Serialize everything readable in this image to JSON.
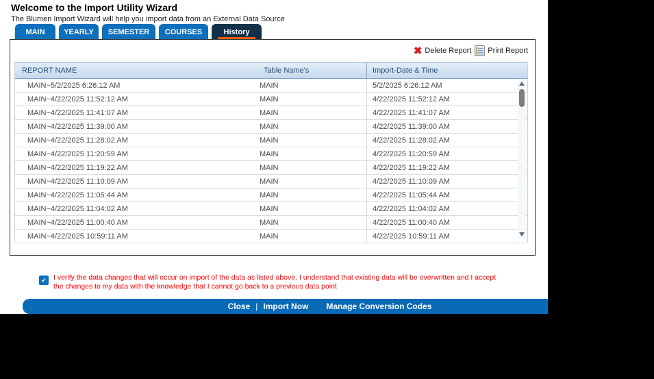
{
  "page": {
    "title": "Welcome to the Import Utility Wizard",
    "subtitle": "The Blumen Import Wizard will help you import data from an External Data Source"
  },
  "tabs": [
    {
      "label": "MAIN",
      "active": false
    },
    {
      "label": "YEARLY",
      "active": false
    },
    {
      "label": "SEMESTER",
      "active": false
    },
    {
      "label": "COURSES",
      "active": false
    },
    {
      "label": "History",
      "active": true
    }
  ],
  "toolbar": {
    "delete_label": "Delete Report",
    "print_label": "Print Report",
    "delete_icon": "red-x",
    "print_icon": "printer-document"
  },
  "table": {
    "columns": [
      "REPORT NAME",
      "Table Name's",
      "Import-Date & Time"
    ],
    "rows": [
      [
        "MAIN~5/2/2025 6:26:12 AM",
        "MAIN",
        "5/2/2025 6:26:12 AM"
      ],
      [
        "MAIN~4/22/2025 11:52:12 AM",
        "MAIN",
        "4/22/2025 11:52:12 AM"
      ],
      [
        "MAIN~4/22/2025 11:41:07 AM",
        "MAIN",
        "4/22/2025 11:41:07 AM"
      ],
      [
        "MAIN~4/22/2025 11:39:00 AM",
        "MAIN",
        "4/22/2025 11:39:00 AM"
      ],
      [
        "MAIN~4/22/2025 11:28:02 AM",
        "MAIN",
        "4/22/2025 11:28:02 AM"
      ],
      [
        "MAIN~4/22/2025 11:20:59 AM",
        "MAIN",
        "4/22/2025 11:20:59 AM"
      ],
      [
        "MAIN~4/22/2025 11:19:22 AM",
        "MAIN",
        "4/22/2025 11:19:22 AM"
      ],
      [
        "MAIN~4/22/2025 11:10:09 AM",
        "MAIN",
        "4/22/2025 11:10:09 AM"
      ],
      [
        "MAIN~4/22/2025 11:05:44 AM",
        "MAIN",
        "4/22/2025 11:05:44 AM"
      ],
      [
        "MAIN~4/22/2025 11:04:02 AM",
        "MAIN",
        "4/22/2025 11:04:02 AM"
      ],
      [
        "MAIN~4/22/2025 11:00:40 AM",
        "MAIN",
        "4/22/2025 11:00:40 AM"
      ],
      [
        "MAIN~4/22/2025 10:59:11 AM",
        "MAIN",
        "4/22/2025 10:59:11 AM"
      ]
    ]
  },
  "confirmation": {
    "checked": true,
    "text": "I verify the data changes that will occur on import of the data as listed above. I understand that existing data will be overwritten and I accept the changes to my data with the knowledge that I cannot go back to a previous data point"
  },
  "footer": {
    "close_label": "Close",
    "separator": "|",
    "import_label": "Import Now",
    "manage_label": "Manage Conversion Codes"
  },
  "colors": {
    "tab_blue": "#0E6FBD",
    "active_tab_navy": "#123149",
    "accent_orange": "#E95A0C",
    "footer_bar_blue": "#0A6AB5",
    "header_text_blue": "#1F4E79",
    "alert_red": "#FF0000",
    "delete_x_red": "#D81E1E"
  }
}
